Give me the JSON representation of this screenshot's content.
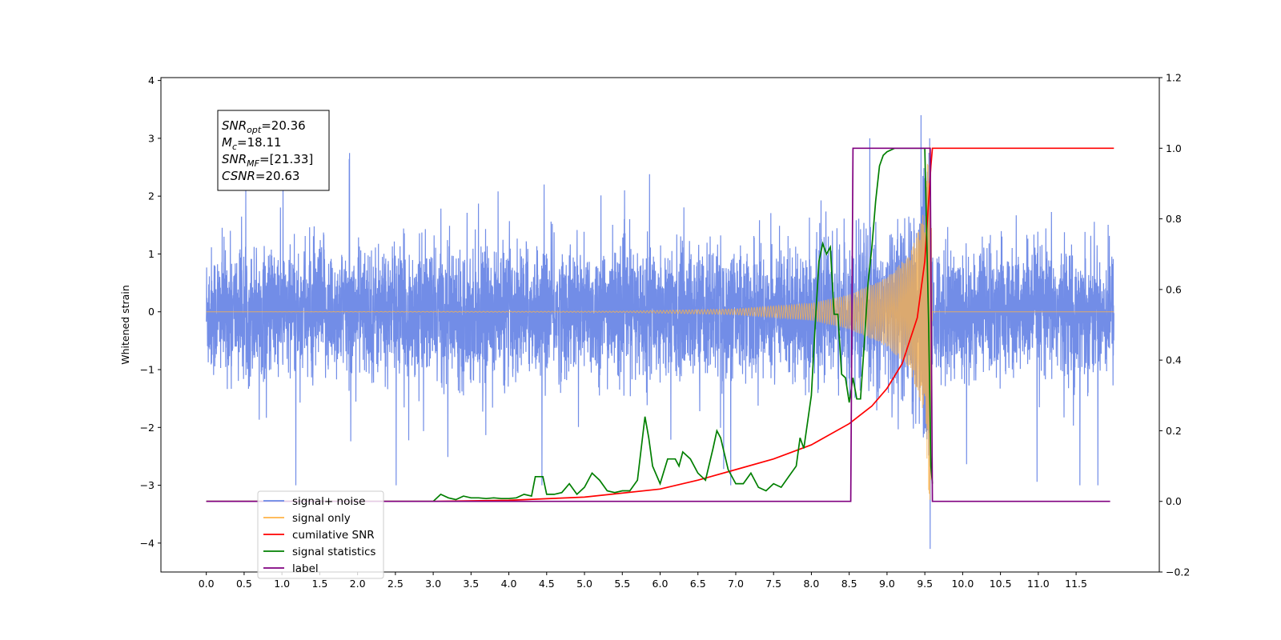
{
  "chart_data": {
    "type": "line",
    "ylabel": "Whitened strain",
    "x_ticks": [
      "0.0",
      "0.5",
      "1.0",
      "1.5",
      "2.0",
      "2.5",
      "3.0",
      "3.5",
      "4.0",
      "4.5",
      "5.0",
      "5.5",
      "6.0",
      "6.5",
      "7.0",
      "7.5",
      "8.0",
      "8.5",
      "9.0",
      "9.5",
      "10.0",
      "10.5",
      "11.0",
      "11.5"
    ],
    "y_left_ticks": [
      "4",
      "3",
      "2",
      "1",
      "0",
      "−1",
      "−2",
      "−3",
      "−4"
    ],
    "y_right_ticks": [
      "1.2",
      "1.0",
      "0.8",
      "0.6",
      "0.4",
      "0.2",
      "0.0",
      "−0.2"
    ],
    "xlim": [
      -0.6,
      12.6
    ],
    "ylim_left": [
      -4.5,
      4.05
    ],
    "ylim_right": [
      -0.2,
      1.2
    ],
    "grid": false,
    "legend_position": "lower-left",
    "annotation": [
      {
        "var": "SNR",
        "sub": "opt",
        "value": "=20.36"
      },
      {
        "var": "M",
        "sub": "c",
        "value": "=18.11"
      },
      {
        "var": "SNR",
        "sub": "MF",
        "value": "=[21.33]"
      },
      {
        "var": "CSNR",
        "sub": "",
        "value": "=20.63"
      }
    ],
    "colors": {
      "signal_noise": "#6a87e6",
      "signal_only": "#ffb347",
      "cumulative_snr": "#ff0000",
      "signal_statistics": "#007f00",
      "label": "#800080"
    },
    "series": [
      {
        "name": "signal+ noise",
        "axis": "left",
        "color": "#6a87e6",
        "note_range": [
          0.0,
          12.0
        ],
        "noise_std": 0.55,
        "x_extremes": [
          [
            9.45,
            3.4
          ],
          [
            9.57,
            -4.1
          ]
        ]
      },
      {
        "name": "signal only",
        "axis": "left",
        "color": "#ffb347",
        "envelope": {
          "x": [
            0.0,
            5.5,
            7.0,
            8.0,
            8.5,
            9.0,
            9.3,
            9.5,
            9.57,
            9.6,
            12.0
          ],
          "amplitude": [
            0.0,
            0.01,
            0.05,
            0.15,
            0.3,
            0.6,
            1.0,
            1.8,
            3.65,
            0.0,
            0.0
          ]
        }
      },
      {
        "name": "cumilative SNR",
        "axis": "right",
        "color": "#ff0000",
        "x": [
          0.0,
          3.0,
          4.0,
          5.0,
          6.0,
          6.5,
          7.0,
          7.5,
          8.0,
          8.5,
          8.8,
          9.0,
          9.2,
          9.4,
          9.5,
          9.55,
          9.58,
          9.6,
          12.0
        ],
        "values": [
          0.0,
          0.0,
          0.003,
          0.012,
          0.035,
          0.06,
          0.09,
          0.12,
          0.16,
          0.22,
          0.27,
          0.32,
          0.39,
          0.52,
          0.68,
          0.85,
          0.95,
          1.0,
          1.0
        ]
      },
      {
        "name": "signal statistics",
        "axis": "right",
        "color": "#007f00",
        "x": [
          0.0,
          2.5,
          3.0,
          3.1,
          3.2,
          3.3,
          3.4,
          3.5,
          3.6,
          3.7,
          3.8,
          3.9,
          4.0,
          4.1,
          4.2,
          4.3,
          4.35,
          4.45,
          4.5,
          4.6,
          4.7,
          4.8,
          4.9,
          5.0,
          5.1,
          5.2,
          5.3,
          5.4,
          5.5,
          5.6,
          5.7,
          5.8,
          5.85,
          5.9,
          6.0,
          6.1,
          6.2,
          6.25,
          6.3,
          6.4,
          6.5,
          6.6,
          6.7,
          6.75,
          6.8,
          6.9,
          7.0,
          7.1,
          7.2,
          7.3,
          7.4,
          7.5,
          7.6,
          7.7,
          7.8,
          7.85,
          7.9,
          8.0,
          8.05,
          8.1,
          8.15,
          8.2,
          8.25,
          8.3,
          8.35,
          8.4,
          8.45,
          8.5,
          8.55,
          8.6,
          8.65,
          8.7,
          8.75,
          8.8,
          8.85,
          8.9,
          8.95,
          9.0,
          9.1,
          9.2,
          9.3,
          9.4,
          9.5,
          9.55,
          9.58,
          9.6
        ],
        "values": [
          0.0,
          0.0,
          0.0,
          0.02,
          0.01,
          0.005,
          0.015,
          0.01,
          0.01,
          0.008,
          0.01,
          0.008,
          0.008,
          0.01,
          0.02,
          0.015,
          0.07,
          0.07,
          0.02,
          0.02,
          0.025,
          0.05,
          0.02,
          0.04,
          0.08,
          0.06,
          0.03,
          0.025,
          0.03,
          0.03,
          0.06,
          0.24,
          0.18,
          0.1,
          0.05,
          0.12,
          0.12,
          0.1,
          0.14,
          0.12,
          0.08,
          0.06,
          0.15,
          0.2,
          0.18,
          0.09,
          0.05,
          0.05,
          0.08,
          0.04,
          0.03,
          0.05,
          0.04,
          0.07,
          0.1,
          0.18,
          0.15,
          0.3,
          0.5,
          0.68,
          0.73,
          0.7,
          0.72,
          0.53,
          0.53,
          0.36,
          0.35,
          0.28,
          0.35,
          0.29,
          0.29,
          0.45,
          0.62,
          0.72,
          0.85,
          0.95,
          0.98,
          0.99,
          1.0,
          1.0,
          1.0,
          1.0,
          1.0,
          0.5,
          0.1,
          0.05
        ]
      },
      {
        "name": "label",
        "axis": "right",
        "color": "#800080",
        "x": [
          0.0,
          8.52,
          8.55,
          9.57,
          9.6,
          11.95
        ],
        "values": [
          0.0,
          0.0,
          1.0,
          1.0,
          0.0,
          0.0
        ]
      }
    ]
  },
  "legend": [
    {
      "label": "signal+ noise",
      "color": "#6a87e6"
    },
    {
      "label": "signal only",
      "color": "#ffb347"
    },
    {
      "label": "cumilative SNR",
      "color": "#ff0000"
    },
    {
      "label": "signal statistics",
      "color": "#007f00"
    },
    {
      "label": "label",
      "color": "#800080"
    }
  ]
}
